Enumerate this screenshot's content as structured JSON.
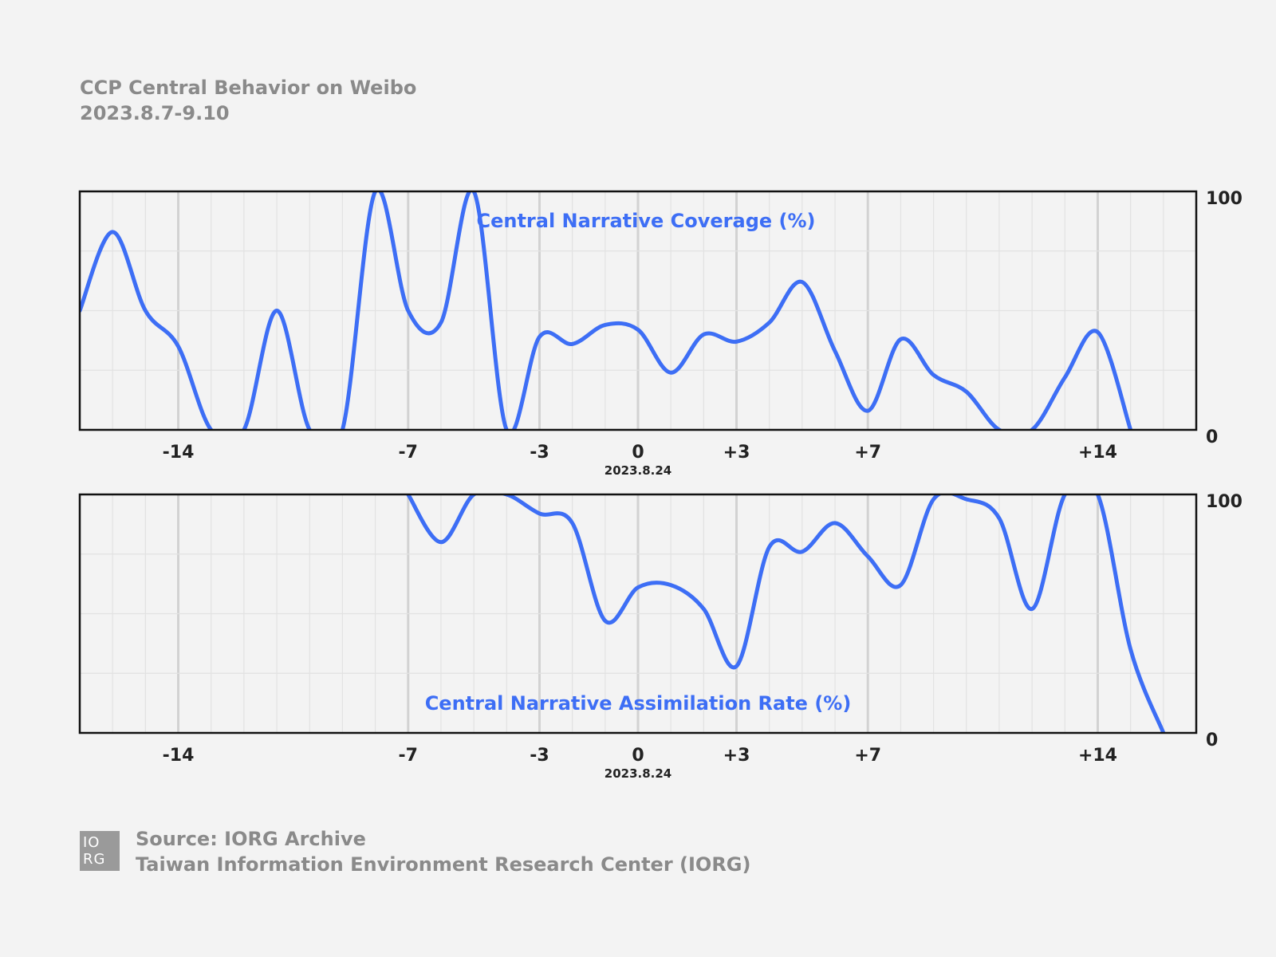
{
  "header": {
    "title": "CCP Central Behavior on Weibo",
    "subtitle": "2023.8.7-9.10"
  },
  "chart_data": [
    {
      "type": "line",
      "title": "Central Narrative Coverage (%)",
      "x_axis": {
        "range": [
          -17,
          17
        ],
        "tick_labels": [
          {
            "x": -14,
            "label": "-14"
          },
          {
            "x": -7,
            "label": "-7"
          },
          {
            "x": -3,
            "label": "-3"
          },
          {
            "x": 0,
            "label": "0"
          },
          {
            "x": 3,
            "label": "+3"
          },
          {
            "x": 7,
            "label": "+7"
          },
          {
            "x": 14,
            "label": "+14"
          }
        ],
        "date_label": "2023.8.24"
      },
      "y_axis": {
        "range": [
          0,
          100
        ],
        "tick_labels": [
          "100",
          "0"
        ],
        "position": "right"
      },
      "grid": true,
      "color": "#3d6ef5",
      "series": [
        {
          "x": [
            -17,
            -16,
            -15,
            -14,
            -13,
            -12,
            -11,
            -10,
            -9,
            -8,
            -7,
            -6,
            -5,
            -4,
            -3,
            -2,
            -1,
            0,
            1,
            2,
            3,
            4,
            5,
            6,
            7,
            8,
            9,
            10,
            11,
            12,
            13,
            14,
            15,
            16,
            17
          ],
          "y": [
            50,
            83,
            50,
            35,
            0,
            0,
            50,
            0,
            0,
            100,
            50,
            45,
            100,
            0,
            39,
            36,
            44,
            42,
            24,
            40,
            37,
            45,
            62,
            33,
            8,
            38,
            23,
            16,
            0,
            0,
            22,
            41,
            0,
            null,
            null
          ]
        }
      ]
    },
    {
      "type": "line",
      "title": "Central Narrative Assimilation Rate (%)",
      "x_axis": {
        "range": [
          -17,
          17
        ],
        "tick_labels": [
          {
            "x": -14,
            "label": "-14"
          },
          {
            "x": -7,
            "label": "-7"
          },
          {
            "x": -3,
            "label": "-3"
          },
          {
            "x": 0,
            "label": "0"
          },
          {
            "x": 3,
            "label": "+3"
          },
          {
            "x": 7,
            "label": "+7"
          },
          {
            "x": 14,
            "label": "+14"
          }
        ],
        "date_label": "2023.8.24"
      },
      "y_axis": {
        "range": [
          0,
          100
        ],
        "tick_labels": [
          "100",
          "0"
        ],
        "position": "right"
      },
      "grid": true,
      "color": "#3d6ef5",
      "series": [
        {
          "x": [
            -17,
            -16,
            -15,
            -14,
            -13,
            -12,
            -11,
            -10,
            -9,
            -8,
            -7,
            -6,
            -5,
            -4,
            -3,
            -2,
            -1,
            0,
            1,
            2,
            3,
            4,
            5,
            6,
            7,
            8,
            9,
            10,
            11,
            12,
            13,
            14,
            15,
            16,
            17
          ],
          "y": [
            null,
            null,
            null,
            null,
            null,
            null,
            null,
            null,
            null,
            null,
            100,
            80,
            100,
            100,
            92,
            88,
            47,
            61,
            62,
            52,
            28,
            78,
            76,
            88,
            74,
            62,
            98,
            98,
            90,
            52,
            100,
            100,
            35,
            0,
            null
          ]
        }
      ]
    }
  ],
  "footer": {
    "logo_text_line1": "IO",
    "logo_text_line2": "RG",
    "source": "Source: IORG Archive",
    "org": "Taiwan Information Environment Research Center (IORG)"
  }
}
